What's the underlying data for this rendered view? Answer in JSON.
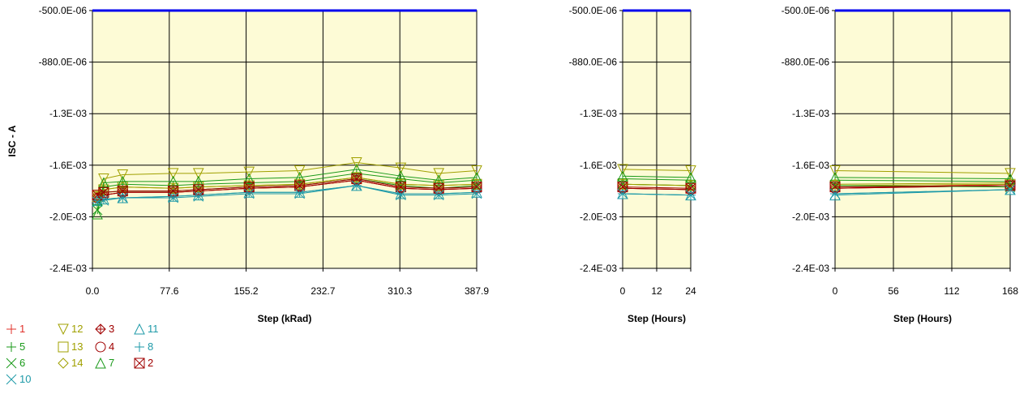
{
  "chart_data": [
    {
      "type": "line",
      "xlabel": "Step (kRad)",
      "ylabel": "ISC - A",
      "x": [
        0.0,
        6.5,
        25.9,
        77.6,
        103.4,
        155.2,
        206.9,
        265.1,
        310.3,
        349.1,
        387.9
      ],
      "xticks": [
        "0.0",
        "77.6",
        "155.2",
        "232.7",
        "310.3",
        "387.9"
      ],
      "xlim": [
        -5,
        387.9
      ],
      "yticks": [
        "-500.0E-06",
        "-880.0E-06",
        "-1.3E-03",
        "-1.6E-03",
        "-2.0E-03",
        "-2.4E-03"
      ],
      "ylim": [
        -0.0024,
        -0.0005
      ],
      "limit_line": -0.0005,
      "series": [
        {
          "name": "1",
          "values": [
            -0.00188,
            -0.00186,
            -0.00184,
            -0.00184,
            -0.00183,
            -0.00181,
            -0.0018,
            -0.00175,
            -0.00181,
            -0.00182,
            -0.00181
          ]
        },
        {
          "name": "12",
          "values": [
            -0.00187,
            -0.00174,
            -0.00171,
            -0.0017,
            -0.0017,
            -0.00169,
            -0.00168,
            -0.00162,
            -0.00166,
            -0.0017,
            -0.00168
          ]
        },
        {
          "name": "3",
          "values": [
            -0.00188,
            -0.00186,
            -0.00184,
            -0.00184,
            -0.00183,
            -0.00181,
            -0.0018,
            -0.00175,
            -0.00181,
            -0.00182,
            -0.00181
          ]
        },
        {
          "name": "11",
          "values": [
            -0.0019,
            -0.00189,
            -0.00188,
            -0.00187,
            -0.00186,
            -0.00184,
            -0.00184,
            -0.00179,
            -0.00185,
            -0.00185,
            -0.00184
          ]
        },
        {
          "name": "5",
          "values": [
            -0.00193,
            -0.0018,
            -0.00178,
            -0.00179,
            -0.00178,
            -0.00177,
            -0.00176,
            -0.0017,
            -0.00174,
            -0.00177,
            -0.00175
          ]
        },
        {
          "name": "13",
          "values": [
            -0.00187,
            -0.00182,
            -0.0018,
            -0.00181,
            -0.0018,
            -0.00179,
            -0.00178,
            -0.00173,
            -0.00178,
            -0.00179,
            -0.00178
          ]
        },
        {
          "name": "4",
          "values": [
            -0.00188,
            -0.00186,
            -0.00184,
            -0.00184,
            -0.00183,
            -0.00181,
            -0.0018,
            -0.00175,
            -0.00181,
            -0.00182,
            -0.00181
          ]
        },
        {
          "name": "8",
          "values": [
            -0.0019,
            -0.00189,
            -0.00188,
            -0.00187,
            -0.00186,
            -0.00184,
            -0.00184,
            -0.00179,
            -0.00185,
            -0.00185,
            -0.00184
          ]
        },
        {
          "name": "6",
          "values": [
            -0.00197,
            -0.00184,
            -0.00183,
            -0.00183,
            -0.00182,
            -0.0018,
            -0.00179,
            -0.00174,
            -0.00179,
            -0.00181,
            -0.00179
          ]
        },
        {
          "name": "14",
          "values": [
            -0.00187,
            -0.00182,
            -0.0018,
            -0.00181,
            -0.0018,
            -0.00179,
            -0.00178,
            -0.00173,
            -0.00178,
            -0.00179,
            -0.00178
          ]
        },
        {
          "name": "7",
          "values": [
            -0.002,
            -0.00177,
            -0.00176,
            -0.00176,
            -0.00176,
            -0.00174,
            -0.00173,
            -0.00167,
            -0.00172,
            -0.00175,
            -0.00173
          ]
        },
        {
          "name": "2",
          "values": [
            -0.00186,
            -0.00184,
            -0.00183,
            -0.00183,
            -0.00182,
            -0.0018,
            -0.00179,
            -0.00174,
            -0.0018,
            -0.00181,
            -0.0018
          ]
        },
        {
          "name": "10",
          "values": [
            -0.00191,
            -0.0019,
            -0.00188,
            -0.00188,
            -0.00187,
            -0.00185,
            -0.00185,
            -0.00179,
            -0.00186,
            -0.00186,
            -0.00185
          ]
        }
      ]
    },
    {
      "type": "line",
      "xlabel": "Step (Hours)",
      "x": [
        0,
        24
      ],
      "xticks": [
        "0",
        "12",
        "24"
      ],
      "xlim": [
        0,
        24
      ],
      "yticks": [
        "-500.0E-06",
        "-880.0E-06",
        "-1.3E-03",
        "-1.6E-03",
        "-2.0E-03",
        "-2.4E-03"
      ],
      "ylim": [
        -0.0024,
        -0.0005
      ],
      "limit_line": -0.0005,
      "series": [
        {
          "name": "1",
          "values": [
            -0.00181,
            -0.00182
          ]
        },
        {
          "name": "12",
          "values": [
            -0.00167,
            -0.00168
          ]
        },
        {
          "name": "3",
          "values": [
            -0.00181,
            -0.00182
          ]
        },
        {
          "name": "11",
          "values": [
            -0.00185,
            -0.00186
          ]
        },
        {
          "name": "5",
          "values": [
            -0.00174,
            -0.00175
          ]
        },
        {
          "name": "13",
          "values": [
            -0.00178,
            -0.00179
          ]
        },
        {
          "name": "4",
          "values": [
            -0.00181,
            -0.00182
          ]
        },
        {
          "name": "8",
          "values": [
            -0.00185,
            -0.00186
          ]
        },
        {
          "name": "6",
          "values": [
            -0.00178,
            -0.00179
          ]
        },
        {
          "name": "14",
          "values": [
            -0.00178,
            -0.00179
          ]
        },
        {
          "name": "7",
          "values": [
            -0.00172,
            -0.00173
          ]
        },
        {
          "name": "2",
          "values": [
            -0.0018,
            -0.00181
          ]
        },
        {
          "name": "10",
          "values": [
            -0.00185,
            -0.00186
          ]
        }
      ]
    },
    {
      "type": "line",
      "xlabel": "Step (Hours)",
      "x": [
        0,
        168
      ],
      "xticks": [
        "0",
        "56",
        "112",
        "168"
      ],
      "xlim": [
        0,
        168
      ],
      "yticks": [
        "-500.0E-06",
        "-880.0E-06",
        "-1.3E-03",
        "-1.6E-03",
        "-2.0E-03",
        "-2.4E-03"
      ],
      "ylim": [
        -0.0024,
        -0.0005
      ],
      "limit_line": -0.0005,
      "series": [
        {
          "name": "1",
          "values": [
            -0.00181,
            -0.00178
          ]
        },
        {
          "name": "12",
          "values": [
            -0.00168,
            -0.0017
          ]
        },
        {
          "name": "3",
          "values": [
            -0.00181,
            -0.00179
          ]
        },
        {
          "name": "11",
          "values": [
            -0.00186,
            -0.00182
          ]
        },
        {
          "name": "5",
          "values": [
            -0.00175,
            -0.00176
          ]
        },
        {
          "name": "13",
          "values": [
            -0.00179,
            -0.00178
          ]
        },
        {
          "name": "4",
          "values": [
            -0.00181,
            -0.00179
          ]
        },
        {
          "name": "8",
          "values": [
            -0.00185,
            -0.00182
          ]
        },
        {
          "name": "6",
          "values": [
            -0.00179,
            -0.0018
          ]
        },
        {
          "name": "14",
          "values": [
            -0.00178,
            -0.00177
          ]
        },
        {
          "name": "7",
          "values": [
            -0.00173,
            -0.00174
          ]
        },
        {
          "name": "2",
          "values": [
            -0.0018,
            -0.00179
          ]
        },
        {
          "name": "10",
          "values": [
            -0.00185,
            -0.00182
          ]
        }
      ]
    }
  ],
  "legend": [
    {
      "label": "1",
      "marker": "plus",
      "color": "#e0302a"
    },
    {
      "label": "12",
      "marker": "triangle-down",
      "color": "#a0a000"
    },
    {
      "label": "3",
      "marker": "circle-plus",
      "color": "#a00000"
    },
    {
      "label": "11",
      "marker": "triangle-up",
      "color": "#1e9aa8"
    },
    {
      "label": "5",
      "marker": "plus",
      "color": "#1a9a1a"
    },
    {
      "label": "13",
      "marker": "square",
      "color": "#a0a000"
    },
    {
      "label": "4",
      "marker": "circle",
      "color": "#a00000"
    },
    {
      "label": "8",
      "marker": "plus",
      "color": "#1e9aa8"
    },
    {
      "label": "6",
      "marker": "x",
      "color": "#1a9a1a"
    },
    {
      "label": "14",
      "marker": "diamond",
      "color": "#a0a000"
    },
    {
      "label": "7",
      "marker": "triangle-up",
      "color": "#1a9a1a"
    },
    {
      "label": "2",
      "marker": "square-x",
      "color": "#a00000"
    },
    {
      "label": "10",
      "marker": "x",
      "color": "#1e9aa8"
    }
  ],
  "colors": {
    "plot_bg": "#fdfbd6",
    "grid": "#000000",
    "limit": "#0000ee"
  }
}
